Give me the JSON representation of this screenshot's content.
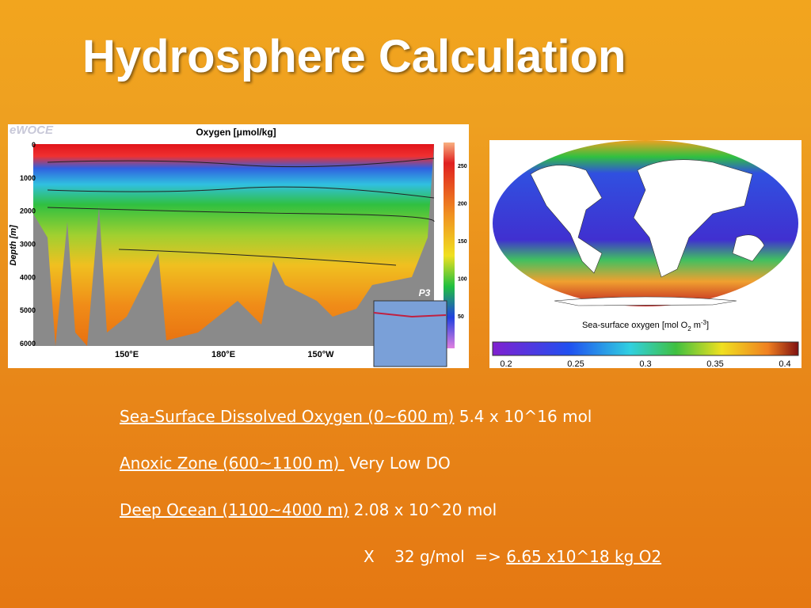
{
  "title": "Hydrosphere Calculation",
  "section_figure": {
    "logo": "eWOCE",
    "title": "Oxygen [μmol/kg]",
    "y_label": "Depth [m]",
    "depth_ticks": [
      "0",
      "1000",
      "2000",
      "3000",
      "4000",
      "5000",
      "6000"
    ],
    "x_ticks": [
      "150°E",
      "180°E",
      "150°W"
    ],
    "scale_ticks": [
      "250",
      "200",
      "150",
      "100",
      "50"
    ],
    "inset_label": "P3"
  },
  "map_figure": {
    "caption": "Sea-surface oxygen [mol O",
    "caption_sub": "2",
    "caption_mid": "m",
    "caption_sup": "-3",
    "caption_end": "]",
    "scale_ticks": [
      "0.2",
      "0.25",
      "0.3",
      "0.35",
      "0.4"
    ]
  },
  "lines": [
    {
      "link": "Sea-Surface Dissolved Oxygen (0~600 m)",
      "text": "5.4 x 10^16 mol"
    },
    {
      "link": "Anoxic Zone (600~1100 m) ",
      "text": "Very Low DO"
    },
    {
      "link": "Deep Ocean (1100~4000 m)",
      "text": "2.08 x 10^20 mol"
    }
  ],
  "result": {
    "text": "X    32 g/mol  =>",
    "link": "6.65 x10^18 kg O2"
  }
}
